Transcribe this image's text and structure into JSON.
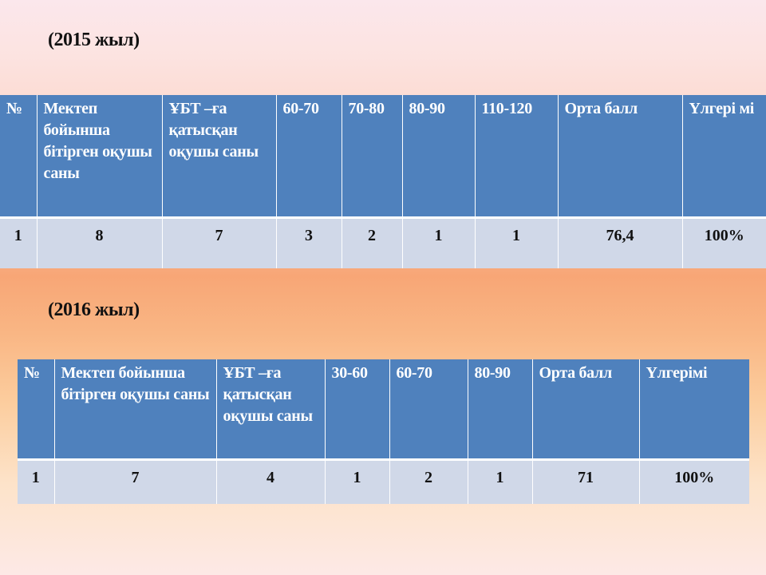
{
  "table_2015": {
    "title": "(2015 жыл)",
    "headers": [
      "№",
      "Мектеп бойынша бітірген оқушы саны",
      "ҰБТ –ға қатысқан оқушы саны",
      "60-70",
      "70-80",
      "80-90",
      "110-120",
      "Орта балл",
      "Үлгері мі"
    ],
    "row": [
      "1",
      "8",
      "7",
      "3",
      "2",
      "1",
      "1",
      "76,4",
      "100%"
    ]
  },
  "table_2016": {
    "title": "(2016 жыл)",
    "headers": [
      "№",
      "Мектеп бойынша бітірген оқушы саны",
      "ҰБТ –ға қатысқан оқушы саны",
      "30-60",
      "60-70",
      "80-90",
      "Орта балл",
      "Үлгерімі"
    ],
    "row": [
      "1",
      "7",
      "4",
      "1",
      "2",
      "1",
      "71",
      "100%"
    ]
  },
  "colors": {
    "header_bg": "#4f81bd",
    "cell_bg": "#d0d8e8"
  }
}
